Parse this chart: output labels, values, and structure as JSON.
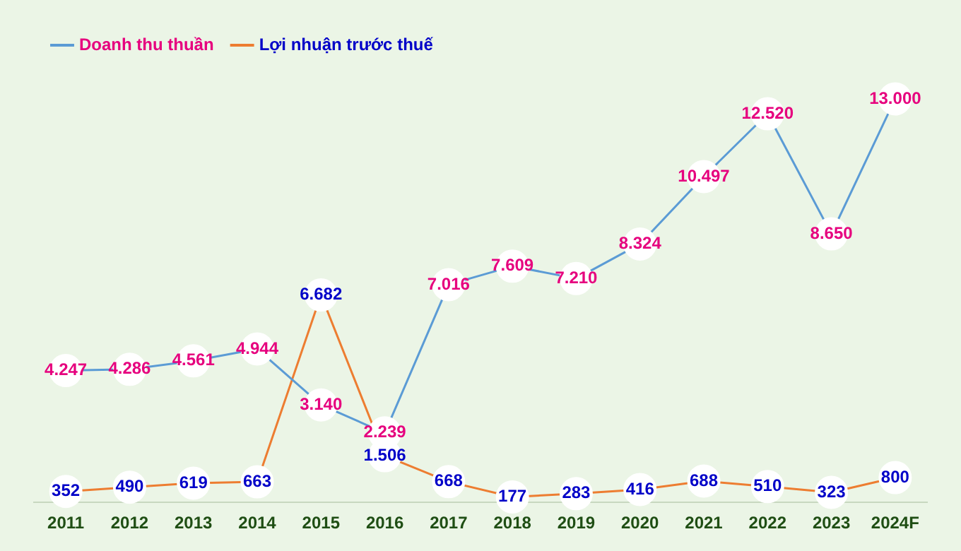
{
  "chart_data": {
    "type": "line",
    "categories": [
      "2011",
      "2012",
      "2013",
      "2014",
      "2015",
      "2016",
      "2017",
      "2018",
      "2019",
      "2020",
      "2021",
      "2022",
      "2023",
      "2024F"
    ],
    "series": [
      {
        "name": "Doanh thu thuần",
        "color": "#5b9bd5",
        "values": [
          4247,
          4286,
          4561,
          4944,
          3140,
          2239,
          7016,
          7609,
          7210,
          8324,
          10497,
          12520,
          8650,
          13000
        ],
        "value_labels": [
          "4.247",
          "4.286",
          "4.561",
          "4.944",
          "3.140",
          "2.239",
          "7.016",
          "7.609",
          "7.210",
          "8.324",
          "10.497",
          "12.520",
          "8.650",
          "13.000"
        ]
      },
      {
        "name": "Lợi nhuận trước thuế",
        "color": "#ed7d31",
        "values": [
          352,
          490,
          619,
          663,
          6682,
          1506,
          668,
          177,
          283,
          416,
          688,
          510,
          323,
          800
        ],
        "value_labels": [
          "352",
          "490",
          "619",
          "663",
          "6.682",
          "1.506",
          "668",
          "177",
          "283",
          "416",
          "688",
          "510",
          "323",
          "800"
        ]
      }
    ],
    "legend": "top left",
    "grid": false,
    "marker": "circle",
    "tick_labels": "x"
  }
}
